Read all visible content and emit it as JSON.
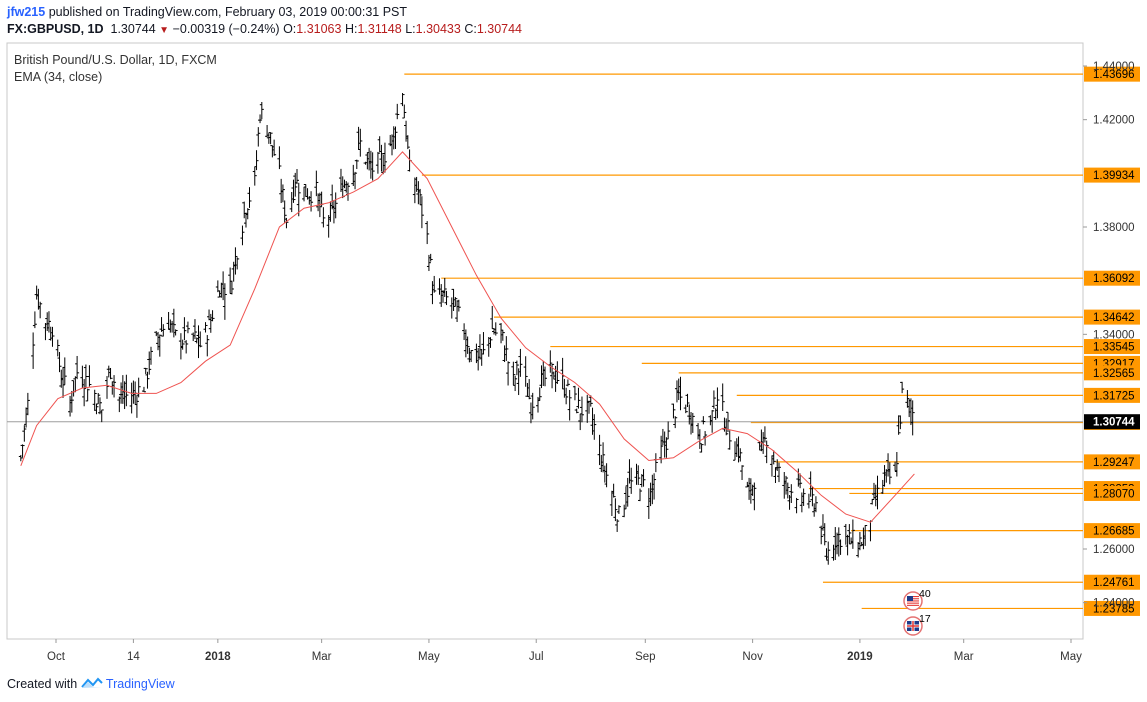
{
  "header": {
    "user": "jfw215",
    "published_text": " published on TradingView.com, February 03, 2019 00:00:31 PST",
    "symbol": "FX:GBPUSD, 1D",
    "last": "1.30744",
    "change": "−0.00319 (−0.24%)",
    "o_label": "O:",
    "o_value": "1.31063",
    "h_label": "H:",
    "h_value": "1.31148",
    "l_label": "L:",
    "l_value": "1.30433",
    "c_label": "C:",
    "c_value": "1.30744"
  },
  "legend": {
    "title": "British Pound/U.S. Dollar, 1D, FXCM",
    "indicator": "EMA (34, close)"
  },
  "footer": {
    "created_with": "Created with",
    "brand": "TradingView"
  },
  "colors": {
    "bars": "#000000",
    "ema": "#ef5350",
    "level_line": "#ff9800",
    "level_label_bg": "#ff9800",
    "last_price_bg": "#000000",
    "current_price_line": "#9e9e9e"
  },
  "events": [
    {
      "flag": "us-flag-icon",
      "count": "40"
    },
    {
      "flag": "uk-flag-icon",
      "count": "17"
    }
  ],
  "chart_data": {
    "type": "ohlc",
    "title": "British Pound/U.S. Dollar, 1D, FXCM",
    "xlabel": "",
    "ylabel": "",
    "ylim": [
      1.224,
      1.446
    ],
    "y_ticks": [
      "1.44000",
      "1.42000",
      "1.38000",
      "1.34000",
      "1.26000",
      "1.24000"
    ],
    "y_tick_values": [
      1.44,
      1.42,
      1.38,
      1.34,
      1.26,
      1.24
    ],
    "x_ticks": [
      "Oct",
      "14",
      "2018",
      "Mar",
      "May",
      "Jul",
      "Sep",
      "Nov",
      "2019",
      "Mar",
      "May"
    ],
    "x_tick_bold": [
      false,
      false,
      true,
      false,
      false,
      false,
      false,
      false,
      true,
      false,
      false
    ],
    "x_tick_dates": [
      "2017-10-01",
      "2017-11-14",
      "2018-01-01",
      "2018-03-01",
      "2018-05-01",
      "2018-07-01",
      "2018-09-01",
      "2018-11-01",
      "2019-01-01",
      "2019-03-01",
      "2019-05-01"
    ],
    "price_levels": [
      {
        "value": 1.43696,
        "label": "1.43696",
        "start": "2018-04-17"
      },
      {
        "value": 1.39934,
        "label": "1.39934",
        "start": "2018-04-27"
      },
      {
        "value": 1.36092,
        "label": "1.36092",
        "start": "2018-05-08"
      },
      {
        "value": 1.34642,
        "label": "1.34642",
        "start": "2018-06-07"
      },
      {
        "value": 1.33545,
        "label": "1.33545",
        "start": "2018-07-09"
      },
      {
        "value": 1.32917,
        "label": "1.32917",
        "start": "2018-08-30"
      },
      {
        "value": 1.32565,
        "label": "1.32565",
        "start": "2018-09-20"
      },
      {
        "value": 1.31725,
        "label": "1.31725",
        "start": "2018-10-23"
      },
      {
        "value": 1.30715,
        "label": "1.30715",
        "start": "2018-10-31"
      },
      {
        "value": 1.29247,
        "label": "1.29247",
        "start": "2018-11-14"
      },
      {
        "value": 1.28253,
        "label": "1.28253",
        "start": "2018-12-03"
      },
      {
        "value": 1.2807,
        "label": "1.28070",
        "start": "2018-12-26"
      },
      {
        "value": 1.26685,
        "label": "1.26685",
        "start": "2018-12-27"
      },
      {
        "value": 1.24761,
        "label": "1.24761",
        "start": "2018-12-11"
      },
      {
        "value": 1.23785,
        "label": "1.23785",
        "start": "2019-01-02"
      }
    ],
    "last_price": {
      "value": 1.30744,
      "label": "1.30744"
    },
    "series": [
      {
        "kind": "bars",
        "points": [
          [
            "2017-09-11",
            1.294
          ],
          [
            "2017-09-15",
            1.314
          ],
          [
            "2017-09-20",
            1.355
          ],
          [
            "2017-09-25",
            1.345
          ],
          [
            "2017-09-29",
            1.343
          ],
          [
            "2017-10-04",
            1.325
          ],
          [
            "2017-10-09",
            1.315
          ],
          [
            "2017-10-13",
            1.326
          ],
          [
            "2017-10-18",
            1.323
          ],
          [
            "2017-10-23",
            1.318
          ],
          [
            "2017-10-27",
            1.312
          ],
          [
            "2017-11-01",
            1.327
          ],
          [
            "2017-11-06",
            1.316
          ],
          [
            "2017-11-10",
            1.317
          ],
          [
            "2017-11-15",
            1.318
          ],
          [
            "2017-11-20",
            1.321
          ],
          [
            "2017-11-24",
            1.331
          ],
          [
            "2017-11-29",
            1.341
          ],
          [
            "2017-12-04",
            1.345
          ],
          [
            "2017-12-08",
            1.339
          ],
          [
            "2017-12-13",
            1.338
          ],
          [
            "2017-12-18",
            1.339
          ],
          [
            "2017-12-22",
            1.336
          ],
          [
            "2017-12-27",
            1.343
          ],
          [
            "2018-01-02",
            1.358
          ],
          [
            "2018-01-08",
            1.357
          ],
          [
            "2018-01-12",
            1.372
          ],
          [
            "2018-01-17",
            1.388
          ],
          [
            "2018-01-22",
            1.396
          ],
          [
            "2018-01-25",
            1.423
          ],
          [
            "2018-01-30",
            1.416
          ],
          [
            "2018-02-05",
            1.399
          ],
          [
            "2018-02-09",
            1.383
          ],
          [
            "2018-02-14",
            1.397
          ],
          [
            "2018-02-20",
            1.393
          ],
          [
            "2018-02-26",
            1.393
          ],
          [
            "2018-03-02",
            1.382
          ],
          [
            "2018-03-07",
            1.385
          ],
          [
            "2018-03-13",
            1.395
          ],
          [
            "2018-03-19",
            1.401
          ],
          [
            "2018-03-23",
            1.411
          ],
          [
            "2018-03-29",
            1.401
          ],
          [
            "2018-04-04",
            1.405
          ],
          [
            "2018-04-10",
            1.412
          ],
          [
            "2018-04-16",
            1.431
          ],
          [
            "2018-04-20",
            1.401
          ],
          [
            "2018-04-25",
            1.393
          ],
          [
            "2018-04-30",
            1.376
          ],
          [
            "2018-05-04",
            1.354
          ],
          [
            "2018-05-09",
            1.354
          ],
          [
            "2018-05-15",
            1.351
          ],
          [
            "2018-05-21",
            1.342
          ],
          [
            "2018-05-25",
            1.333
          ],
          [
            "2018-05-31",
            1.331
          ],
          [
            "2018-06-06",
            1.342
          ],
          [
            "2018-06-12",
            1.338
          ],
          [
            "2018-06-18",
            1.322
          ],
          [
            "2018-06-22",
            1.329
          ],
          [
            "2018-06-28",
            1.314
          ],
          [
            "2018-07-04",
            1.322
          ],
          [
            "2018-07-10",
            1.326
          ],
          [
            "2018-07-16",
            1.322
          ],
          [
            "2018-07-20",
            1.317
          ],
          [
            "2018-07-26",
            1.312
          ],
          [
            "2018-08-01",
            1.311
          ],
          [
            "2018-08-07",
            1.294
          ],
          [
            "2018-08-13",
            1.281
          ],
          [
            "2018-08-17",
            1.272
          ],
          [
            "2018-08-23",
            1.284
          ],
          [
            "2018-08-29",
            1.285
          ],
          [
            "2018-09-04",
            1.281
          ],
          [
            "2018-09-10",
            1.296
          ],
          [
            "2018-09-14",
            1.302
          ],
          [
            "2018-09-20",
            1.317
          ],
          [
            "2018-09-26",
            1.312
          ],
          [
            "2018-10-02",
            1.302
          ],
          [
            "2018-10-08",
            1.307
          ],
          [
            "2018-10-12",
            1.318
          ],
          [
            "2018-10-18",
            1.304
          ],
          [
            "2018-10-24",
            1.297
          ],
          [
            "2018-10-30",
            1.279
          ],
          [
            "2018-11-05",
            1.294
          ],
          [
            "2018-11-09",
            1.302
          ],
          [
            "2018-11-15",
            1.289
          ],
          [
            "2018-11-21",
            1.283
          ],
          [
            "2018-11-27",
            1.281
          ],
          [
            "2018-12-03",
            1.279
          ],
          [
            "2018-12-07",
            1.277
          ],
          [
            "2018-12-13",
            1.258
          ],
          [
            "2018-12-19",
            1.265
          ],
          [
            "2018-12-27",
            1.263
          ],
          [
            "2019-01-03",
            1.263
          ],
          [
            "2019-01-09",
            1.277
          ],
          [
            "2019-01-15",
            1.286
          ],
          [
            "2019-01-21",
            1.287
          ],
          [
            "2019-01-25",
            1.317
          ],
          [
            "2019-01-31",
            1.311
          ],
          [
            "2019-02-01",
            1.307
          ]
        ]
      },
      {
        "kind": "ema",
        "points": [
          [
            "2017-09-11",
            1.291
          ],
          [
            "2017-09-20",
            1.306
          ],
          [
            "2017-10-02",
            1.316
          ],
          [
            "2017-10-16",
            1.32
          ],
          [
            "2017-10-30",
            1.321
          ],
          [
            "2017-11-13",
            1.318
          ],
          [
            "2017-11-27",
            1.318
          ],
          [
            "2017-12-11",
            1.322
          ],
          [
            "2017-12-25",
            1.33
          ],
          [
            "2018-01-08",
            1.336
          ],
          [
            "2018-01-22",
            1.357
          ],
          [
            "2018-02-05",
            1.38
          ],
          [
            "2018-02-19",
            1.387
          ],
          [
            "2018-03-05",
            1.389
          ],
          [
            "2018-03-19",
            1.393
          ],
          [
            "2018-04-02",
            1.398
          ],
          [
            "2018-04-16",
            1.408
          ],
          [
            "2018-04-30",
            1.398
          ],
          [
            "2018-05-14",
            1.38
          ],
          [
            "2018-05-28",
            1.362
          ],
          [
            "2018-06-11",
            1.346
          ],
          [
            "2018-06-25",
            1.335
          ],
          [
            "2018-07-09",
            1.328
          ],
          [
            "2018-07-23",
            1.322
          ],
          [
            "2018-08-06",
            1.314
          ],
          [
            "2018-08-20",
            1.301
          ],
          [
            "2018-09-03",
            1.293
          ],
          [
            "2018-09-17",
            1.294
          ],
          [
            "2018-10-01",
            1.3
          ],
          [
            "2018-10-15",
            1.305
          ],
          [
            "2018-10-29",
            1.303
          ],
          [
            "2018-11-12",
            1.297
          ],
          [
            "2018-11-26",
            1.289
          ],
          [
            "2018-12-10",
            1.28
          ],
          [
            "2018-12-24",
            1.273
          ],
          [
            "2019-01-07",
            1.27
          ],
          [
            "2019-01-21",
            1.28
          ],
          [
            "2019-02-01",
            1.288
          ]
        ]
      }
    ]
  }
}
